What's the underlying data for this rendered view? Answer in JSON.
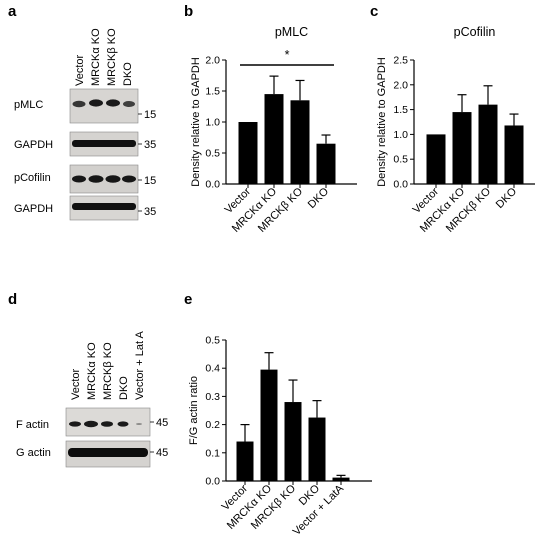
{
  "panels": {
    "a": "a",
    "b": "b",
    "c": "c",
    "d": "d",
    "e": "e"
  },
  "blot_a": {
    "lanes": [
      "Vector",
      "MRCKα KO",
      "MRCKβ KO",
      "DKO"
    ],
    "rows": [
      {
        "label": "pMLC",
        "marker": "15"
      },
      {
        "label": "GAPDH",
        "marker": "35"
      },
      {
        "label": "pCofilin",
        "marker": "15"
      },
      {
        "label": "GAPDH",
        "marker": "35"
      }
    ]
  },
  "blot_d": {
    "lanes": [
      "Vector",
      "MRCKα KO",
      "MRCKβ KO",
      "DKO",
      "Vector + Lat A"
    ],
    "rows": [
      {
        "label": "F actin",
        "marker": "45"
      },
      {
        "label": "G actin",
        "marker": "45"
      }
    ]
  },
  "chart_data": [
    {
      "id": "b",
      "type": "bar",
      "title": "pMLC",
      "ylabel": "Density relative to GAPDH",
      "xlabel": "",
      "categories": [
        "Vector",
        "MRCKα KO",
        "MRCKβ KO",
        "DKO"
      ],
      "values": [
        1.0,
        1.45,
        1.35,
        0.65
      ],
      "errors": [
        0,
        0.29,
        0.32,
        0.14
      ],
      "ylim": [
        0,
        2.0
      ],
      "yticks": [
        "0.0",
        "0.5",
        "1.0",
        "1.5",
        "2.0"
      ],
      "significance": "*",
      "color": "#000000"
    },
    {
      "id": "c",
      "type": "bar",
      "title": "pCofilin",
      "ylabel": "Density relative to GAPDH",
      "xlabel": "",
      "categories": [
        "Vector",
        "MRCKα KO",
        "MRCKβ KO",
        "DKO"
      ],
      "values": [
        1.0,
        1.45,
        1.6,
        1.18
      ],
      "errors": [
        0,
        0.35,
        0.38,
        0.23
      ],
      "ylim": [
        0,
        2.5
      ],
      "yticks": [
        "0.0",
        "0.5",
        "1.0",
        "1.5",
        "2.0",
        "2.5"
      ],
      "color": "#000000"
    },
    {
      "id": "e",
      "type": "bar",
      "title": "",
      "ylabel": "F/G actin ratio",
      "xlabel": "",
      "categories": [
        "Vector",
        "MRCKα KO",
        "MRCKβ KO",
        "DKO",
        "Vector + LatA"
      ],
      "values": [
        0.14,
        0.395,
        0.28,
        0.225,
        0.012
      ],
      "errors": [
        0.06,
        0.06,
        0.078,
        0.06,
        0.008
      ],
      "ylim": [
        0,
        0.5
      ],
      "yticks": [
        "0.0",
        "0.1",
        "0.2",
        "0.3",
        "0.4",
        "0.5"
      ],
      "color": "#000000"
    }
  ]
}
